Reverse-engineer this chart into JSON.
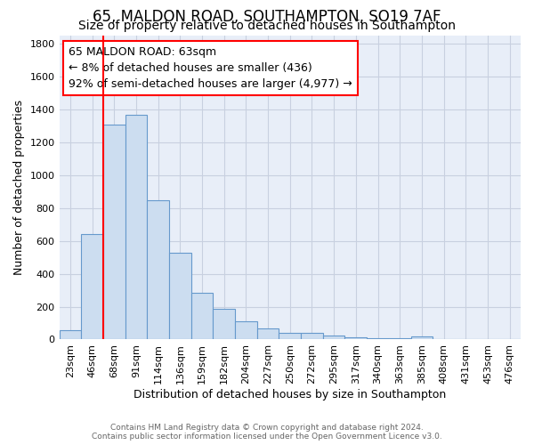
{
  "title_line1": "65, MALDON ROAD, SOUTHAMPTON, SO19 7AF",
  "title_line2": "Size of property relative to detached houses in Southampton",
  "xlabel": "Distribution of detached houses by size in Southampton",
  "ylabel": "Number of detached properties",
  "categories": [
    "23sqm",
    "46sqm",
    "68sqm",
    "91sqm",
    "114sqm",
    "136sqm",
    "159sqm",
    "182sqm",
    "204sqm",
    "227sqm",
    "250sqm",
    "272sqm",
    "295sqm",
    "317sqm",
    "340sqm",
    "363sqm",
    "385sqm",
    "408sqm",
    "431sqm",
    "453sqm",
    "476sqm"
  ],
  "values": [
    55,
    640,
    1310,
    1370,
    845,
    530,
    285,
    185,
    110,
    70,
    38,
    38,
    25,
    15,
    10,
    10,
    20,
    5,
    5,
    5,
    5
  ],
  "bar_color": "#ccddf0",
  "bar_edge_color": "#6699cc",
  "annotation_line1": "65 MALDON ROAD: 63sqm",
  "annotation_line2": "← 8% of detached houses are smaller (436)",
  "annotation_line3": "92% of semi-detached houses are larger (4,977) →",
  "ylim": [
    0,
    1850
  ],
  "yticks": [
    0,
    200,
    400,
    600,
    800,
    1000,
    1200,
    1400,
    1600,
    1800
  ],
  "background_color": "#e8eef8",
  "grid_color": "#c8d0e0",
  "footer": "Contains HM Land Registry data © Crown copyright and database right 2024.\nContains public sector information licensed under the Open Government Licence v3.0.",
  "title_fontsize": 12,
  "subtitle_fontsize": 10,
  "xlabel_fontsize": 9,
  "ylabel_fontsize": 9,
  "tick_fontsize": 8,
  "annot_fontsize": 9
}
